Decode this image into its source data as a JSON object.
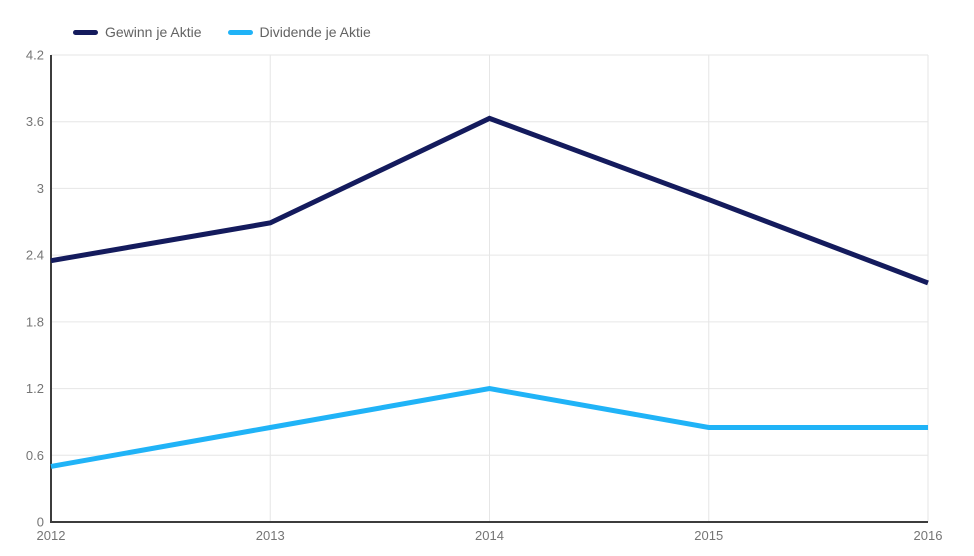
{
  "chart_data": {
    "type": "line",
    "title": "",
    "xlabel": "",
    "ylabel": "",
    "x_labels": [
      "2012",
      "2013",
      "2014",
      "2015",
      "2016"
    ],
    "y_ticks": [
      0,
      0.6,
      1.2,
      1.8,
      2.4,
      3,
      3.6,
      4.2
    ],
    "y_tick_labels": [
      "0",
      "0.6",
      "1.2",
      "1.8",
      "2.4",
      "3",
      "3.6",
      "4.2"
    ],
    "ylim": [
      0,
      4.2
    ],
    "grid": true,
    "legend_position": "top-left",
    "series": [
      {
        "name": "Gewinn je Aktie",
        "color": "#141b5d",
        "values": [
          2.35,
          2.69,
          3.63,
          2.9,
          2.15
        ]
      },
      {
        "name": "Dividende je Aktie",
        "color": "#20b3f7",
        "values": [
          0.5,
          0.85,
          1.2,
          0.85,
          0.85
        ]
      }
    ]
  },
  "colors": {
    "background": "#ffffff",
    "grid": "#e6e6e6",
    "axis": "#3c3c3c",
    "tick_text": "#757575",
    "legend_text": "#636363"
  }
}
